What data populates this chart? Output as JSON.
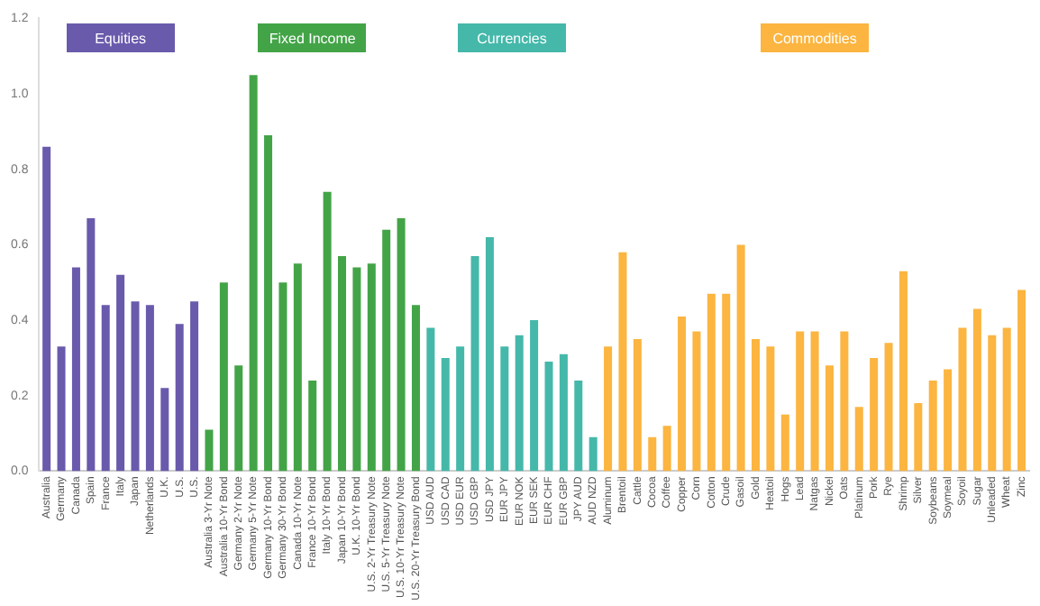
{
  "chart_data": {
    "type": "bar",
    "stacked": true,
    "legend": "top",
    "grid": false,
    "ylim": [
      0,
      1.2
    ],
    "yticks": [
      {
        "value": 0,
        "label": "0.0"
      },
      0.2,
      0.4,
      0.6,
      0.8,
      {
        "value": 1,
        "label": "1.0"
      },
      1.2
    ],
    "categories": [
      "Australia",
      "Germany",
      "Canada",
      "Spain",
      "France",
      "Italy",
      "Japan",
      "Netherlands",
      "U.K.",
      "U.S.",
      "U.S.",
      "Australia 3-Yr Note",
      "Australia 10-Yr Bond",
      "Germany 2-Yr Note",
      "Germany 5-Yr Note",
      "Germany 10-Yr Bond",
      "Germany 30-Yr Bond",
      "Canada 10-Yr Note",
      "France 10-Yr Bond",
      "Italy 10-Yr Bond",
      "Japan 10-Yr Bond",
      "U.K. 10-Yr Bond",
      "U.S. 2-Yr Treasury Note",
      "U.S. 5-Yr Treasury Note",
      "U.S. 10-Yr Treasury Note",
      "U.S. 20-Yr Treasury Bond",
      "USD AUD",
      "USD CAD",
      "USD EUR",
      "USD GBP",
      "USD JPY",
      "EUR JPY",
      "EUR NOK",
      "EUR SEK",
      "EUR CHF",
      "EUR GBP",
      "JPY AUD",
      "AUD NZD",
      "Aluminum",
      "Brentoil",
      "Cattle",
      "Cocoa",
      "Coffee",
      "Copper",
      "Corn",
      "Cotton",
      "Crude",
      "Gasoil",
      "Gold",
      "Heatoil",
      "Hogs",
      "Lead",
      "Natgas",
      "Nickel",
      "Oats",
      "Platinum",
      "Pork",
      "Rye",
      "Shrimp",
      "Silver",
      "Soybeans",
      "Soymeal",
      "Soyoil",
      "Sugar",
      "Unleaded",
      "Wheat",
      "Zinc"
    ],
    "series": [
      {
        "name": "Equities",
        "color": "#6a5aac",
        "values": [
          0.86,
          0.33,
          0.54,
          0.67,
          0.44,
          0.52,
          0.45,
          0.44,
          0.22,
          0.39,
          0.45,
          null,
          null,
          null,
          null,
          null,
          null,
          null,
          null,
          null,
          null,
          null,
          null,
          null,
          null,
          null,
          null,
          null,
          null,
          null,
          null,
          null,
          null,
          null,
          null,
          null,
          null,
          null,
          null,
          null,
          null,
          null,
          null,
          null,
          null,
          null,
          null,
          null,
          null,
          null,
          null,
          null,
          null,
          null,
          null,
          null,
          null,
          null,
          null,
          null,
          null,
          null,
          null,
          null,
          null,
          null,
          null
        ]
      },
      {
        "name": "Fixed Income",
        "color": "#43a447",
        "values": [
          null,
          null,
          null,
          null,
          null,
          null,
          null,
          null,
          null,
          null,
          null,
          0.11,
          0.5,
          0.28,
          1.05,
          0.89,
          0.5,
          0.55,
          0.24,
          0.74,
          0.57,
          0.54,
          0.55,
          0.64,
          0.67,
          0.44,
          null,
          null,
          null,
          null,
          null,
          null,
          null,
          null,
          null,
          null,
          null,
          null,
          null,
          null,
          null,
          null,
          null,
          null,
          null,
          null,
          null,
          null,
          null,
          null,
          null,
          null,
          null,
          null,
          null,
          null,
          null,
          null,
          null,
          null,
          null,
          null,
          null,
          null,
          null,
          null,
          null
        ]
      },
      {
        "name": "Currencies",
        "color": "#45b8aa",
        "values": [
          null,
          null,
          null,
          null,
          null,
          null,
          null,
          null,
          null,
          null,
          null,
          null,
          null,
          null,
          null,
          null,
          null,
          null,
          null,
          null,
          null,
          null,
          null,
          null,
          null,
          null,
          0.38,
          0.3,
          0.33,
          0.57,
          0.62,
          0.33,
          0.36,
          0.4,
          0.29,
          0.31,
          0.24,
          0.09,
          null,
          null,
          null,
          null,
          null,
          null,
          null,
          null,
          null,
          null,
          null,
          null,
          null,
          null,
          null,
          null,
          null,
          null,
          null,
          null,
          null,
          null,
          null,
          null,
          null,
          null,
          null,
          null,
          null
        ]
      },
      {
        "name": "Commodities",
        "color": "#fbb540",
        "values": [
          null,
          null,
          null,
          null,
          null,
          null,
          null,
          null,
          null,
          null,
          null,
          null,
          null,
          null,
          null,
          null,
          null,
          null,
          null,
          null,
          null,
          null,
          null,
          null,
          null,
          null,
          null,
          null,
          null,
          null,
          null,
          null,
          null,
          null,
          null,
          null,
          null,
          null,
          0.33,
          0.58,
          0.35,
          0.09,
          0.12,
          0.41,
          0.37,
          0.47,
          0.47,
          0.6,
          0.35,
          0.33,
          0.15,
          0.37,
          0.37,
          0.28,
          0.37,
          0.17,
          0.3,
          0.34,
          0.53,
          0.18,
          0.24,
          0.27,
          0.38,
          0.43,
          0.36,
          0.38,
          0.48
        ]
      }
    ]
  }
}
